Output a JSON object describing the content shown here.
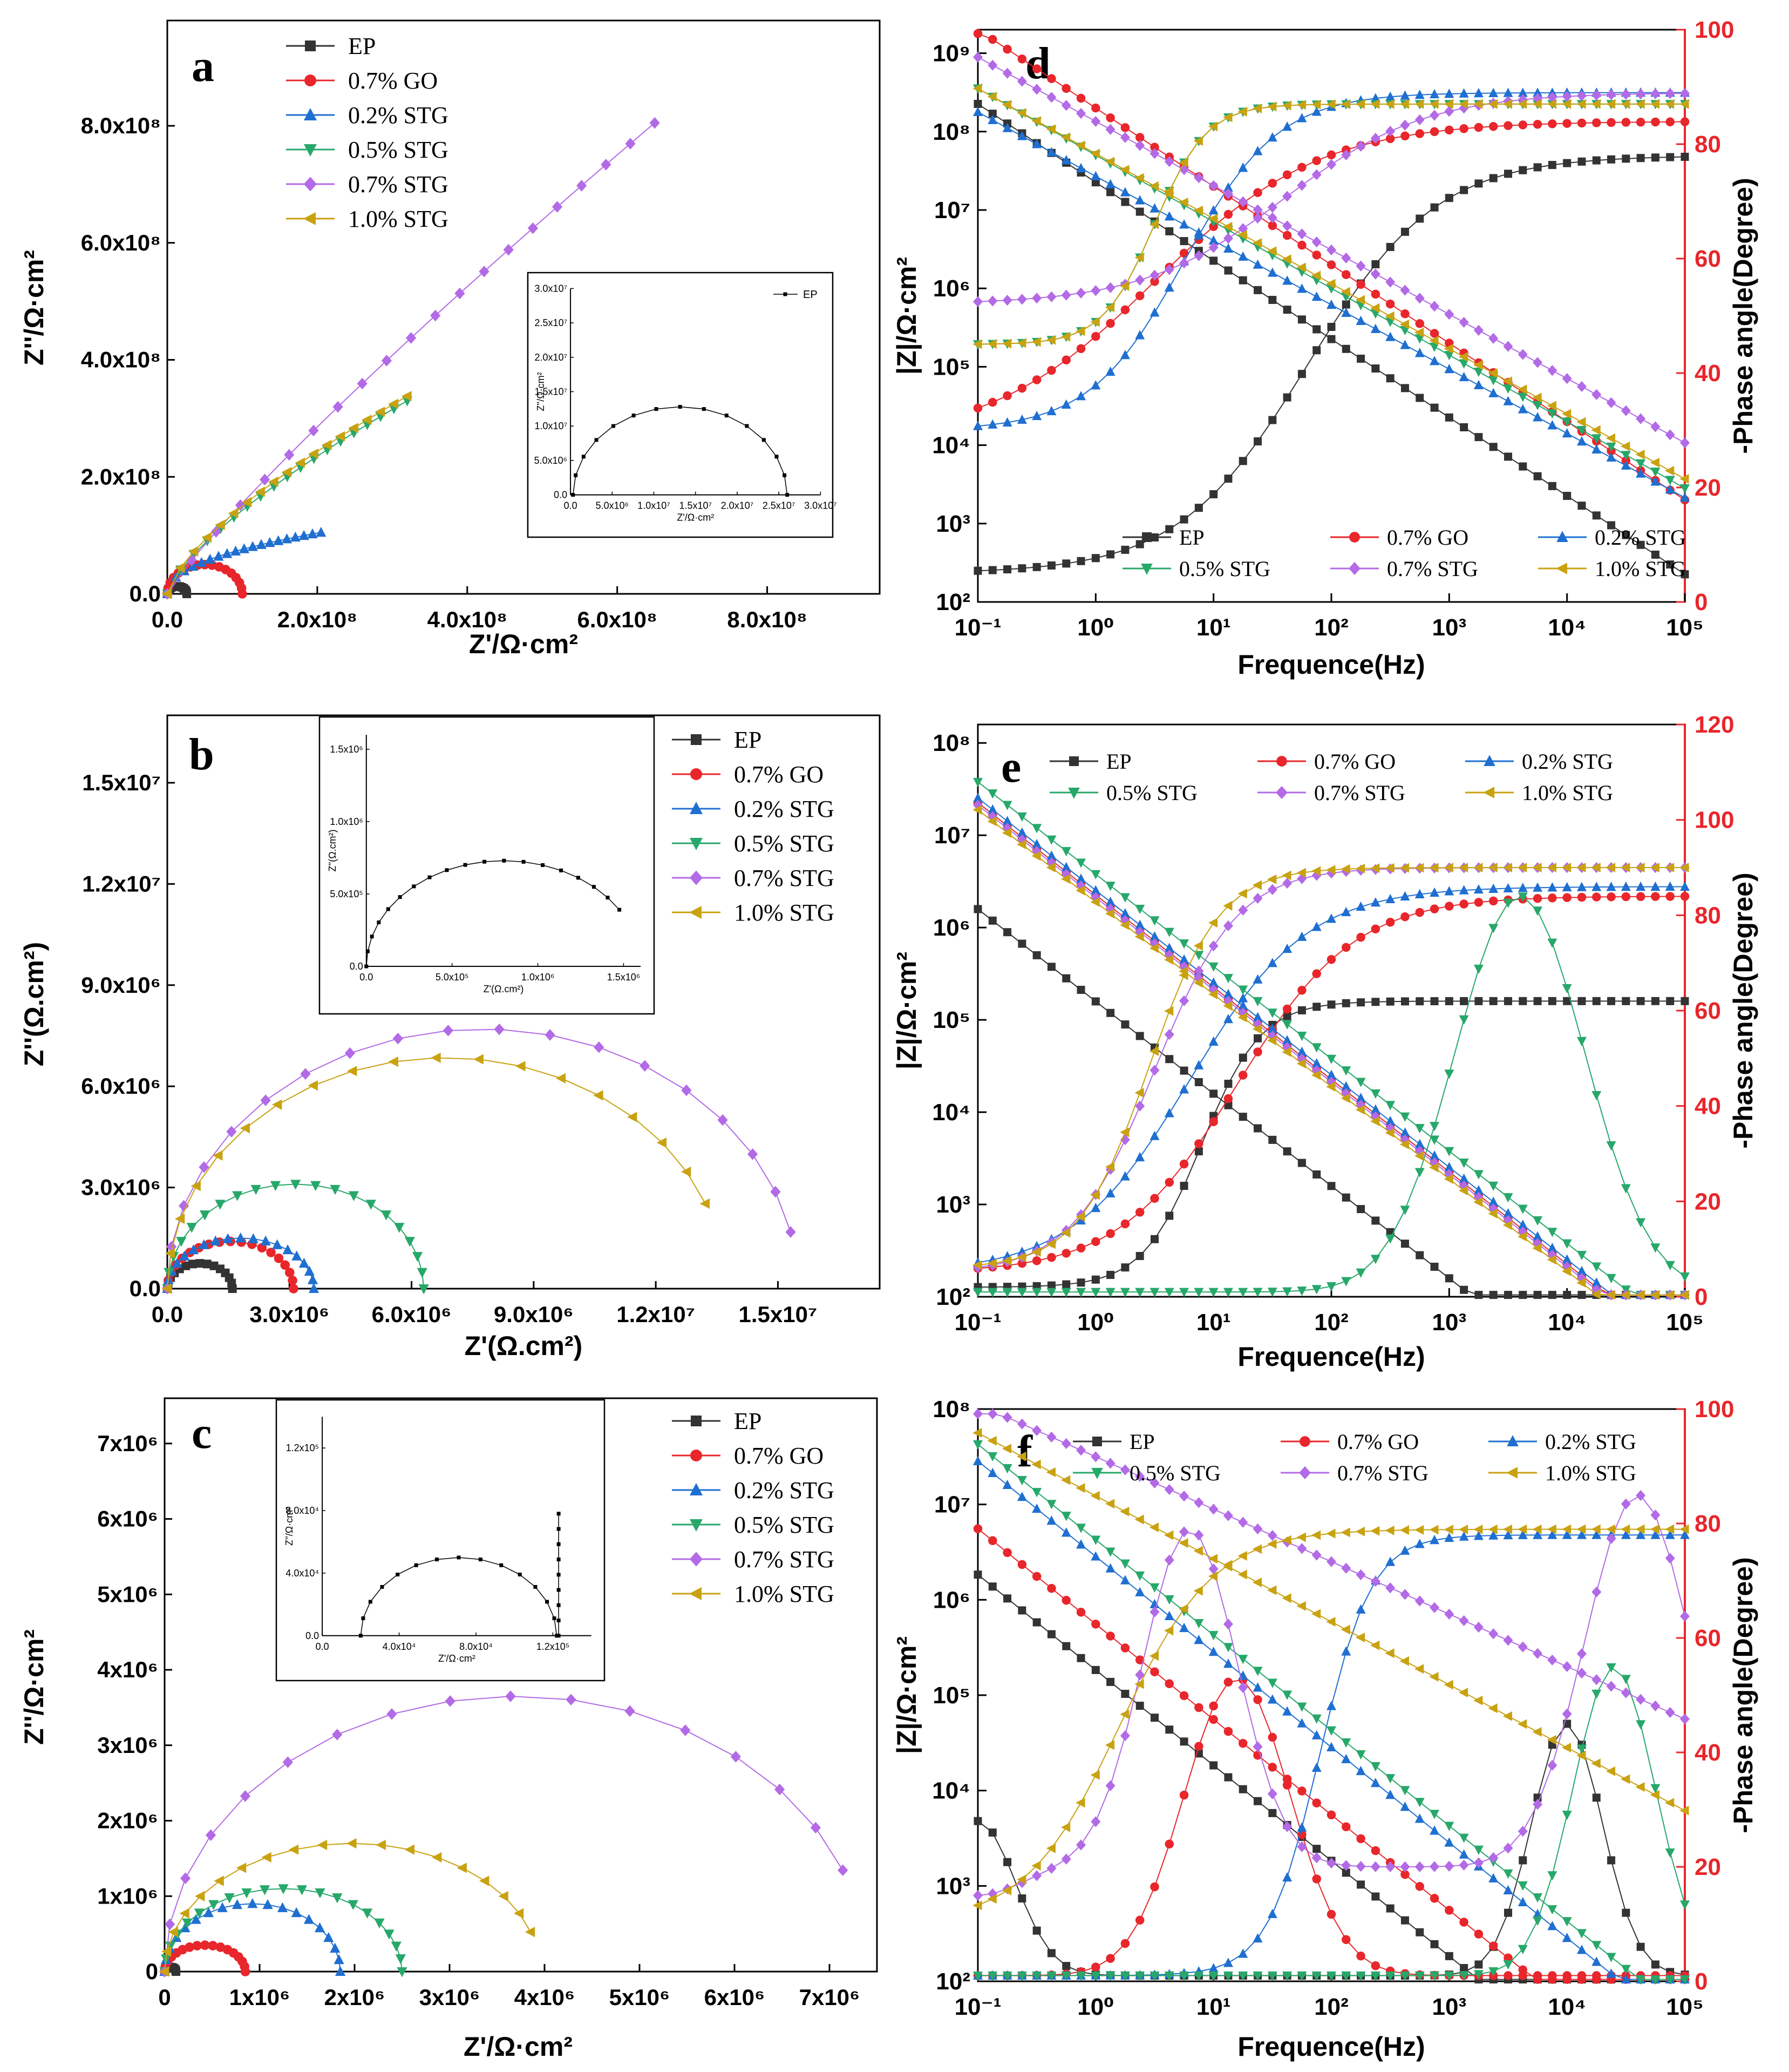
{
  "figure": {
    "colors": {
      "EP": "#333333",
      "0.7% GO": "#e8262b",
      "0.2% STG": "#1f6fd1",
      "0.5% STG": "#27a86a",
      "0.7% STG": "#b36ae6",
      "1.0% STG": "#c9a211",
      "phase_axis": "#e8262b"
    }
  },
  "chart_data": [
    {
      "id": "a",
      "panel_label": "a",
      "type": "scatter",
      "xlabel": "Z'/Ω·cm²",
      "ylabel": "Z''/Ω·cm²",
      "xlim": [
        0,
        950000000.0
      ],
      "ylim": [
        0,
        980000000.0
      ],
      "xticks": [
        0,
        200000000.0,
        400000000.0,
        600000000.0,
        800000000.0
      ],
      "yticks": [
        0,
        200000000.0,
        400000000.0,
        600000000.0,
        800000000.0
      ],
      "xtick_labels": [
        "0.0",
        "2.0x10⁸",
        "4.0x10⁸",
        "6.0x10⁸",
        "8.0x10⁸"
      ],
      "ytick_labels": [
        "0.0",
        "2.0x10⁸",
        "4.0x10⁸",
        "6.0x10⁸",
        "8.0x10⁸"
      ],
      "legend_placement": "top-left",
      "legend": [
        "EP",
        "0.7% GO",
        "0.2% STG",
        "0.5% STG",
        "0.7% STG",
        "1.0% STG"
      ],
      "series": [
        {
          "name": "EP",
          "marker": "square",
          "kind": "arc",
          "x0": 0,
          "x1": 26000000.0,
          "h": 13000000.0,
          "n": 12
        },
        {
          "name": "0.7% GO",
          "marker": "circle",
          "kind": "arc",
          "x0": 0,
          "x1": 100000000.0,
          "h": 50000000.0,
          "n": 16
        },
        {
          "name": "0.2% STG",
          "marker": "triangle-up",
          "kind": "power",
          "xmax": 205000000.0,
          "ymax": 105000000.0,
          "p": 0.45,
          "n": 18
        },
        {
          "name": "0.5% STG",
          "marker": "triangle-down",
          "kind": "power",
          "xmax": 320000000.0,
          "ymax": 330000000.0,
          "p": 0.72,
          "n": 18
        },
        {
          "name": "0.7% STG",
          "marker": "diamond",
          "kind": "power",
          "xmax": 650000000.0,
          "ymax": 805000000.0,
          "p": 0.88,
          "n": 20
        },
        {
          "name": "1.0% STG",
          "marker": "triangle-left",
          "kind": "power",
          "xmax": 320000000.0,
          "ymax": 338000000.0,
          "p": 0.7,
          "n": 18
        }
      ],
      "inset": {
        "xlabel": "Z'/Ω·cm²",
        "ylabel": "Z''/Ω·cm²",
        "xlim": [
          0,
          30000000.0
        ],
        "ylim": [
          0,
          30000000.0
        ],
        "xticks": [
          0,
          5000000.0,
          10000000.0,
          15000000.0,
          20000000.0,
          25000000.0,
          30000000.0
        ],
        "yticks": [
          0,
          5000000.0,
          10000000.0,
          15000000.0,
          20000000.0,
          25000000.0,
          30000000.0
        ],
        "xtick_labels": [
          "0.0",
          "5.0x10⁶",
          "1.0x10⁷",
          "1.5x10⁷",
          "2.0x10⁷",
          "2.5x10⁷",
          "3.0x10⁷"
        ],
        "ytick_labels": [
          "0.0",
          "5.0x10⁶",
          "1.0x10⁷",
          "1.5x10⁷",
          "2.0x10⁷",
          "2.5x10⁷",
          "3.0x10⁷"
        ],
        "legend": [
          "EP"
        ],
        "series": [
          {
            "name": "EP",
            "marker": "square",
            "kind": "arc",
            "x0": 300000.0,
            "x1": 26000000.0,
            "h": 12800000.0,
            "n": 14
          }
        ]
      }
    },
    {
      "id": "b",
      "panel_label": "b",
      "type": "scatter",
      "xlabel": "Z'(Ω.cm²)",
      "ylabel": "Z''(Ω.cm²)",
      "xlim": [
        0,
        17500000.0
      ],
      "ylim": [
        0,
        17000000.0
      ],
      "xticks": [
        0,
        3000000.0,
        6000000.0,
        9000000.0,
        12000000.0,
        15000000.0
      ],
      "yticks": [
        0,
        3000000.0,
        6000000.0,
        9000000.0,
        12000000.0,
        15000000.0
      ],
      "xtick_labels": [
        "0.0",
        "3.0x10⁶",
        "6.0x10⁶",
        "9.0x10⁶",
        "1.2x10⁷",
        "1.5x10⁷"
      ],
      "ytick_labels": [
        "0.0",
        "3.0x10⁶",
        "6.0x10⁶",
        "9.0x10⁶",
        "1.2x10⁷",
        "1.5x10⁷"
      ],
      "legend_placement": "top-right",
      "legend": [
        "EP",
        "0.7% GO",
        "0.2% STG",
        "0.5% STG",
        "0.7% STG",
        "1.0% STG"
      ],
      "series": [
        {
          "name": "EP",
          "marker": "square",
          "kind": "arc",
          "x0": 0,
          "x1": 1600000.0,
          "h": 750000.0,
          "n": 14
        },
        {
          "name": "0.7% GO",
          "marker": "circle",
          "kind": "arc",
          "x0": 0,
          "x1": 3100000.0,
          "h": 1400000.0,
          "n": 18
        },
        {
          "name": "0.2% STG",
          "marker": "triangle-up",
          "kind": "arc",
          "x0": 0,
          "x1": 3600000.0,
          "h": 1500000.0,
          "n": 18
        },
        {
          "name": "0.5% STG",
          "marker": "triangle-down",
          "kind": "arc",
          "x0": 0,
          "x1": 6300000.0,
          "h": 3100000.0,
          "n": 20
        },
        {
          "name": "0.7% STG",
          "marker": "diamond",
          "kind": "arc",
          "x0": 0,
          "x1": 15500000.0,
          "h": 7700000.0,
          "t1": 0.93,
          "n": 18
        },
        {
          "name": "1.0% STG",
          "marker": "triangle-left",
          "kind": "arc",
          "x0": 0,
          "x1": 13700000.0,
          "h": 6850000.0,
          "t1": 0.88,
          "n": 18
        }
      ],
      "inset": {
        "xlabel": "Z'(Ω.cm²)",
        "ylabel": "Z''(Ω.cm²)",
        "xlim": [
          0,
          1600000.0
        ],
        "ylim": [
          0,
          1600000.0
        ],
        "xticks": [
          0,
          500000.0,
          1000000.0,
          1500000.0
        ],
        "yticks": [
          0,
          500000.0,
          1000000.0,
          1500000.0
        ],
        "xtick_labels": [
          "0.0",
          "5.0x10⁵",
          "1.0x10⁶",
          "1.5x10⁶"
        ],
        "ytick_labels": [
          "0.0",
          "5.0x10⁵",
          "1.0x10⁶",
          "1.5x10⁶"
        ],
        "legend": [],
        "series": [
          {
            "name": "EP",
            "marker": "square",
            "kind": "arc",
            "x0": 0,
            "x1": 1600000.0,
            "h": 730000.0,
            "t1": 0.82,
            "n": 18
          }
        ]
      }
    },
    {
      "id": "c",
      "panel_label": "c",
      "type": "scatter",
      "xlabel": "Z'/Ω·cm²",
      "ylabel": "Z''/Ω·cm²",
      "xlim": [
        0,
        7500000.0
      ],
      "ylim": [
        0,
        7600000.0
      ],
      "xticks": [
        0,
        1000000.0,
        2000000.0,
        3000000.0,
        4000000.0,
        5000000.0,
        6000000.0,
        7000000.0
      ],
      "yticks": [
        0,
        1000000.0,
        2000000.0,
        3000000.0,
        4000000.0,
        5000000.0,
        6000000.0,
        7000000.0
      ],
      "xtick_labels": [
        "0",
        "1x10⁶",
        "2x10⁶",
        "3x10⁶",
        "4x10⁶",
        "5x10⁶",
        "6x10⁶",
        "7x10⁶"
      ],
      "ytick_labels": [
        "0",
        "1x10⁶",
        "2x10⁶",
        "3x10⁶",
        "4x10⁶",
        "5x10⁶",
        "6x10⁶",
        "7x10⁶"
      ],
      "legend_placement": "top-right",
      "legend": [
        "EP",
        "0.7% GO",
        "0.2% STG",
        "0.5% STG",
        "0.7% STG",
        "1.0% STG"
      ],
      "series": [
        {
          "name": "EP",
          "marker": "square",
          "kind": "arc",
          "x0": 0,
          "x1": 120000.0,
          "h": 60000.0,
          "n": 8
        },
        {
          "name": "0.7% GO",
          "marker": "circle",
          "kind": "arc",
          "x0": 0,
          "x1": 850000.0,
          "h": 350000.0,
          "n": 16
        },
        {
          "name": "0.2% STG",
          "marker": "triangle-up",
          "kind": "arc",
          "x0": 0,
          "x1": 1850000.0,
          "h": 900000.0,
          "n": 18
        },
        {
          "name": "0.5% STG",
          "marker": "triangle-down",
          "kind": "arc",
          "x0": 0,
          "x1": 2500000.0,
          "h": 1100000.0,
          "n": 20
        },
        {
          "name": "0.7% STG",
          "marker": "diamond",
          "kind": "arc",
          "x0": 0,
          "x1": 7400000.0,
          "h": 3650000.0,
          "t1": 0.88,
          "n": 16
        },
        {
          "name": "1.0% STG",
          "marker": "triangle-left",
          "kind": "arc",
          "x0": 0,
          "x1": 3950000.0,
          "h": 1700000.0,
          "t1": 0.9,
          "n": 18
        }
      ],
      "inset": {
        "xlabel": "Z'/Ω·cm²",
        "ylabel": "Z''/Ω·cm²",
        "xlim": [
          0,
          140000.0
        ],
        "ylim": [
          0,
          140000.0
        ],
        "xticks": [
          0,
          40000.0,
          80000.0,
          120000.0
        ],
        "yticks": [
          0,
          40000.0,
          80000.0,
          120000.0
        ],
        "xtick_labels": [
          "0.0",
          "4.0x10⁴",
          "8.0x10⁴",
          "1.2x10⁵"
        ],
        "ytick_labels": [
          "0.0",
          "4.0x10⁴",
          "8.0x10⁴",
          "1.2x10⁵"
        ],
        "legend": [],
        "series": [
          {
            "name": "EP",
            "marker": "square",
            "kind": "arc",
            "x0": 20000.0,
            "x1": 122000.0,
            "h": 50000.0,
            "n": 14
          },
          {
            "name": "EP",
            "marker": "square",
            "kind": "vline",
            "x": 123000.0,
            "ymax": 78000.0,
            "n": 8
          }
        ]
      }
    },
    {
      "id": "d",
      "panel_label": "d",
      "type": "line",
      "xlabel": "Frequence(Hz)",
      "ylabel": "|Z|/Ω·cm²",
      "y2label": "-Phase angle(Degree)",
      "x_scale": "log",
      "y_scale": "log",
      "xlim_log": [
        -1,
        5
      ],
      "ylim_log": [
        2,
        9.3
      ],
      "y2lim": [
        0,
        100
      ],
      "xtick_labels": [
        "10⁻¹",
        "10⁰",
        "10¹",
        "10²",
        "10³",
        "10⁴",
        "10⁵"
      ],
      "ytick_labels": [
        "10²",
        "10³",
        "10⁴",
        "10⁵",
        "10⁶",
        "10⁷",
        "10⁸",
        "10⁹"
      ],
      "y2ticks": [
        0,
        20,
        40,
        60,
        80,
        100
      ],
      "legend_placement": "lower-left",
      "legend": [
        "EP",
        "0.7% GO",
        "0.2% STG",
        "0.5% STG",
        "0.7% STG",
        "1.0% STG"
      ],
      "series": [
        {
          "name": "EP",
          "marker": "square",
          "modZ": {
            "kind": "rc",
            "low": 7.45,
            "k": 10.45,
            "fc": 0.8
          },
          "phase": {
            "kind": "sigmoid",
            "a": 5,
            "b": 78,
            "mid": 1.8,
            "w": 0.55
          }
        },
        {
          "name": "0.7% GO",
          "marker": "circle",
          "modZ": {
            "kind": "rc",
            "low": 8.0,
            "k": 10.7,
            "fc": 2.0
          },
          "phase": {
            "kind": "sigmoid",
            "a": 28,
            "b": 84,
            "mid": 0.5,
            "w": 0.7
          }
        },
        {
          "name": "0.2% STG",
          "marker": "triangle-up",
          "modZ": {
            "kind": "cpe",
            "a": 7.6,
            "slope": 0.82,
            "x0": 4.2,
            "hi": 8.2
          },
          "phase": {
            "kind": "sigmoid",
            "a": 30,
            "b": 89,
            "mid": 0.75,
            "w": 0.4
          }
        },
        {
          "name": "0.5% STG",
          "marker": "triangle-down",
          "modZ": {
            "kind": "cpe",
            "a": 7.65,
            "slope": 0.85,
            "x0": 4.2,
            "hi": 8.5
          },
          "phase": {
            "kind": "sigmoid",
            "a": 45,
            "b": 87,
            "mid": 0.5,
            "w": 0.22
          }
        },
        {
          "name": "0.7% STG",
          "marker": "diamond",
          "modZ": {
            "kind": "cpe",
            "a": 8.0,
            "slope": 0.82,
            "x0": 4.2,
            "hi": 8.9
          },
          "phase": {
            "kind": "sigmoid",
            "a": 52,
            "b": 89,
            "mid": 1.6,
            "w": 0.6
          }
        },
        {
          "name": "1.0% STG",
          "marker": "triangle-left",
          "modZ": {
            "kind": "cpe",
            "a": 7.7,
            "slope": 0.83,
            "x0": 4.2,
            "hi": 8.5
          },
          "phase": {
            "kind": "sigmoid",
            "a": 45,
            "b": 87,
            "mid": 0.5,
            "w": 0.22
          }
        }
      ]
    },
    {
      "id": "e",
      "panel_label": "e",
      "type": "line",
      "xlabel": "Frequence(Hz)",
      "ylabel": "|Z|/Ω·cm²",
      "y2label": "-Phase angle(Degree)",
      "x_scale": "log",
      "y_scale": "log",
      "xlim_log": [
        -1,
        5
      ],
      "ylim_log": [
        2,
        8.2
      ],
      "y2lim": [
        0,
        120
      ],
      "xtick_labels": [
        "10⁻¹",
        "10⁰",
        "10¹",
        "10²",
        "10³",
        "10⁴",
        "10⁵"
      ],
      "ytick_labels": [
        "10²",
        "10³",
        "10⁴",
        "10⁵",
        "10⁶",
        "10⁷",
        "10⁸"
      ],
      "y2ticks": [
        0,
        20,
        40,
        60,
        80,
        100,
        120
      ],
      "legend_placement": "top",
      "legend": [
        "EP",
        "0.7% GO",
        "0.2% STG",
        "0.5% STG",
        "0.7% STG",
        "1.0% STG"
      ],
      "series": [
        {
          "name": "EP",
          "marker": "square",
          "modZ": {
            "kind": "rc",
            "low": 6.2,
            "k": 7.2,
            "fc": 0.1
          },
          "phase": {
            "kind": "sigmoid",
            "a": 2,
            "b": 62,
            "mid": 0.9,
            "w": 0.25
          }
        },
        {
          "name": "0.7% GO",
          "marker": "circle",
          "modZ": {
            "kind": "rc",
            "low": 6.45,
            "k": 7.6,
            "fc": 0.8
          },
          "phase": {
            "kind": "sigmoid",
            "a": 5,
            "b": 84,
            "mid": 1.2,
            "w": 0.5
          }
        },
        {
          "name": "0.2% STG",
          "marker": "triangle-up",
          "modZ": {
            "kind": "rc",
            "low": 6.5,
            "k": 7.6,
            "fc": 0.8
          },
          "phase": {
            "kind": "sigmoid",
            "a": 5,
            "b": 86,
            "mid": 0.8,
            "w": 0.5
          }
        },
        {
          "name": "0.5% STG",
          "marker": "triangle-down",
          "modZ": {
            "kind": "rc",
            "low": 6.8,
            "k": 7.7,
            "fc": 0.6
          },
          "phase": {
            "kind": "bump",
            "base": 1,
            "peak": 84,
            "mid": 3.6,
            "w": 0.55
          }
        },
        {
          "name": "0.7% STG",
          "marker": "diamond",
          "modZ": {
            "kind": "rc",
            "low": 7.15,
            "k": 7.9,
            "fc": 0.15
          },
          "phase": {
            "kind": "sigmoid",
            "a": 5,
            "b": 90,
            "mid": 0.5,
            "w": 0.35
          }
        },
        {
          "name": "1.0% STG",
          "marker": "triangle-left",
          "modZ": {
            "kind": "rc",
            "low": 7.1,
            "k": 7.85,
            "fc": 0.15
          },
          "phase": {
            "kind": "sigmoid",
            "a": 6,
            "b": 90,
            "mid": 0.45,
            "w": 0.3
          }
        }
      ]
    },
    {
      "id": "f",
      "panel_label": "f",
      "type": "line",
      "xlabel": "Frequence(Hz)",
      "ylabel": "|Z|/Ω·cm²",
      "y2label": "-Phase angle(Degree)",
      "x_scale": "log",
      "y_scale": "log",
      "xlim_log": [
        -1,
        5
      ],
      "ylim_log": [
        2,
        8
      ],
      "y2lim": [
        0,
        100
      ],
      "xtick_labels": [
        "10⁻¹",
        "10⁰",
        "10¹",
        "10²",
        "10³",
        "10⁴",
        "10⁵"
      ],
      "ytick_labels": [
        "10²",
        "10³",
        "10⁴",
        "10⁵",
        "10⁶",
        "10⁷",
        "10⁸"
      ],
      "y2ticks": [
        0,
        20,
        40,
        60,
        80,
        100
      ],
      "legend_placement": "top",
      "legend": [
        "EP",
        "0.7% GO",
        "0.2% STG",
        "0.5% STG",
        "0.7% STG",
        "1.0% STG"
      ],
      "series": [
        {
          "name": "EP",
          "marker": "square",
          "modZ": {
            "kind": "rc",
            "low": 5.15,
            "k": 5.9,
            "fc": 1.3
          },
          "phase": {
            "kind": "dip",
            "a": 28,
            "base": 1,
            "mid": 4.0,
            "peak": 45,
            "w": 0.3
          }
        },
        {
          "name": "0.7% GO",
          "marker": "circle",
          "modZ": {
            "kind": "rc",
            "low": 5.9,
            "k": 6.6,
            "fc": 0.7
          },
          "phase": {
            "kind": "bump",
            "base": 1,
            "peak": 53,
            "mid": 1.2,
            "w": 0.45
          }
        },
        {
          "name": "0.2% STG",
          "marker": "triangle-up",
          "modZ": {
            "kind": "rc",
            "low": 6.25,
            "k": 7.1,
            "fc": 1.6
          },
          "phase": {
            "kind": "sigmoid",
            "a": 1,
            "b": 78,
            "mid": 1.9,
            "w": 0.22
          }
        },
        {
          "name": "0.5% STG",
          "marker": "triangle-down",
          "modZ": {
            "kind": "rc",
            "low": 6.4,
            "k": 7.3,
            "fc": 1.7
          },
          "phase": {
            "kind": "bump",
            "base": 1,
            "peak": 55,
            "mid": 4.4,
            "w": 0.35
          }
        },
        {
          "name": "0.7% STG",
          "marker": "diamond",
          "modZ": {
            "kind": "cpe",
            "a": 6.9,
            "slope": 0.55,
            "x0": 5.0,
            "hi": 8.0
          },
          "phase": {
            "kind": "double",
            "p1": 79,
            "m1": 0.8,
            "w1": 0.4,
            "p2": 85,
            "m2": 4.6,
            "w2": 0.45,
            "base": 20
          }
        },
        {
          "name": "1.0% STG",
          "marker": "triangle-left",
          "modZ": {
            "kind": "cpe",
            "a": 6.7,
            "slope": 0.66,
            "x0": 5.0,
            "hi": 7.7
          },
          "phase": {
            "kind": "sigmoid",
            "a": 10,
            "b": 79,
            "mid": 0.2,
            "w": 0.4
          }
        }
      ]
    }
  ]
}
